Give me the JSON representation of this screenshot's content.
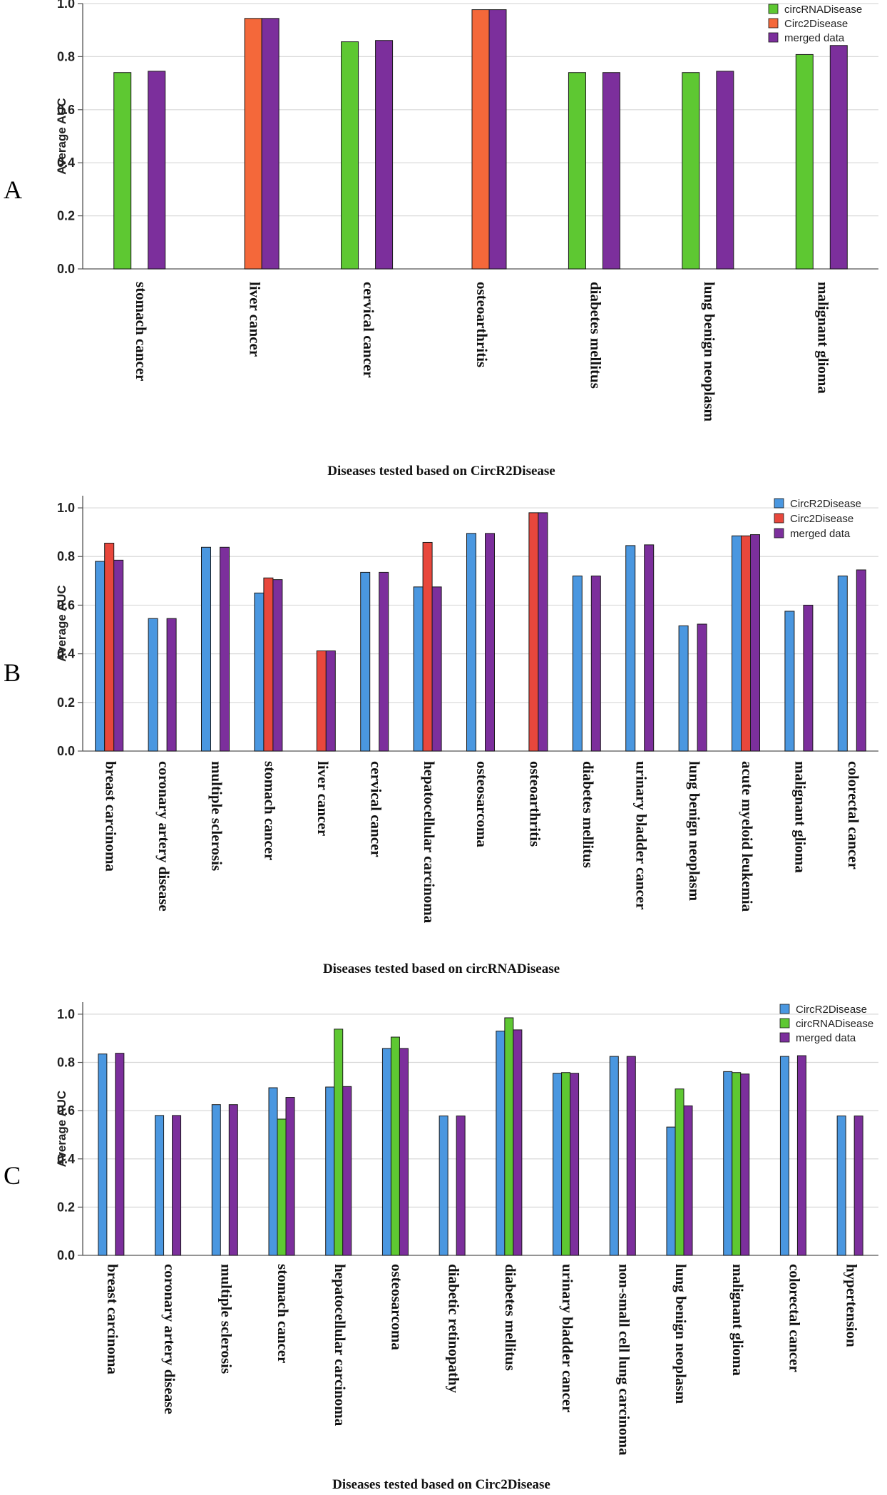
{
  "chart_data": [
    {
      "panel": "A",
      "type": "bar",
      "ylabel": "Average AUC",
      "xlabel": "Diseases tested based on CircR2Disease",
      "ylim": [
        0,
        1.0
      ],
      "yticks": [
        "0.0",
        "0.2",
        "0.4",
        "0.6",
        "0.8",
        "1.0"
      ],
      "grid": true,
      "legend_position": "top-right",
      "categories": [
        "stomach cancer",
        "liver cancer",
        "cervical cancer",
        "osteoarthritis",
        "diabetes mellitus",
        "lung benign neoplasm",
        "malignant glioma"
      ],
      "series": [
        {
          "name": "circRNADisease",
          "color": "#5ec832",
          "values": [
            0.74,
            null,
            0.856,
            null,
            0.74,
            0.74,
            0.808
          ]
        },
        {
          "name": "Circ2Disease",
          "color": "#f4683a",
          "values": [
            null,
            0.944,
            null,
            0.977,
            null,
            null,
            null
          ]
        },
        {
          "name": "merged data",
          "color": "#7c2f9c",
          "values": [
            0.745,
            0.944,
            0.861,
            0.977,
            0.74,
            0.745,
            0.842
          ]
        }
      ]
    },
    {
      "panel": "B",
      "type": "bar",
      "ylabel": "Average AUC",
      "xlabel": "Diseases tested based on circRNADisease",
      "ylim": [
        0,
        1.05
      ],
      "yticks": [
        "0.0",
        "0.2",
        "0.4",
        "0.6",
        "0.8",
        "1.0"
      ],
      "grid": true,
      "legend_position": "top-right",
      "categories": [
        "breast carcinoma",
        "coronary artery disease",
        "multiple sclerosis",
        "stomach cancer",
        "liver cancer",
        "cervical cancer",
        "hepatocellular carcinoma",
        "osteosarcoma",
        "osteoarthritis",
        "diabetes mellitus",
        "urinary bladder cancer",
        "lung benign neoplasm",
        "acute myeloid leukemia",
        "malignant glioma",
        "colorectal cancer"
      ],
      "series": [
        {
          "name": "CircR2Disease",
          "color": "#4a97e0",
          "values": [
            0.78,
            0.545,
            0.838,
            0.65,
            null,
            0.735,
            0.675,
            0.895,
            null,
            0.72,
            0.845,
            0.515,
            0.885,
            0.575,
            0.72
          ]
        },
        {
          "name": "Circ2Disease",
          "color": "#e8473c",
          "values": [
            0.855,
            null,
            null,
            0.712,
            0.412,
            null,
            0.858,
            null,
            0.98,
            null,
            null,
            null,
            0.885,
            null,
            null
          ]
        },
        {
          "name": "merged data",
          "color": "#7c2f9c",
          "values": [
            0.785,
            0.545,
            0.838,
            0.705,
            0.412,
            0.735,
            0.675,
            0.895,
            0.98,
            0.72,
            0.848,
            0.522,
            0.89,
            0.6,
            0.745
          ]
        }
      ]
    },
    {
      "panel": "C",
      "type": "bar",
      "ylabel": "Average AUC",
      "xlabel": "Diseases tested based on Circ2Disease",
      "ylim": [
        0,
        1.05
      ],
      "yticks": [
        "0.0",
        "0.2",
        "0.4",
        "0.6",
        "0.8",
        "1.0"
      ],
      "grid": true,
      "legend_position": "top-right",
      "categories": [
        "breast carcinoma",
        "coronary artery disease",
        "multiple sclerosis",
        "stomach cancer",
        "hepatocellular carcinoma",
        "osteosarcoma",
        "diabetic retinopathy",
        "diabetes mellitus",
        "urinary bladder cancer",
        "non-small cell lung carcinoma",
        "lung benign neoplasm",
        "malignant glioma",
        "colorectal cancer",
        "hypertension"
      ],
      "series": [
        {
          "name": "CircR2Disease",
          "color": "#4a97e0",
          "values": [
            0.835,
            0.58,
            0.625,
            0.695,
            0.698,
            0.858,
            0.578,
            0.93,
            0.755,
            0.825,
            0.532,
            0.762,
            0.825,
            0.578
          ]
        },
        {
          "name": "circRNADisease",
          "color": "#5ec832",
          "values": [
            null,
            null,
            null,
            0.565,
            0.938,
            0.905,
            null,
            0.985,
            0.758,
            null,
            0.69,
            0.758,
            null,
            null
          ]
        },
        {
          "name": "merged data",
          "color": "#7c2f9c",
          "values": [
            0.838,
            0.58,
            0.625,
            0.655,
            0.7,
            0.858,
            0.578,
            0.935,
            0.755,
            0.825,
            0.62,
            0.752,
            0.828,
            0.578
          ]
        }
      ]
    }
  ]
}
